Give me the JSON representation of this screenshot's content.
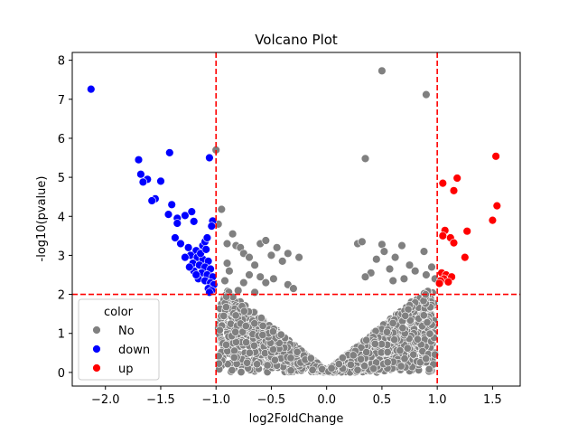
{
  "chart_data": {
    "type": "scatter",
    "title": "Volcano Plot",
    "xlabel": "log2FoldChange",
    "ylabel": "-log10(pvalue)",
    "xlim": [
      -2.3,
      1.75
    ],
    "ylim": [
      -0.35,
      8.2
    ],
    "xticks": [
      -2.0,
      -1.5,
      -1.0,
      -0.5,
      0.0,
      0.5,
      1.0,
      1.5
    ],
    "xtick_labels": [
      "−2.0",
      "−1.5",
      "−1.0",
      "−0.5",
      "0.0",
      "0.5",
      "1.0",
      "1.5"
    ],
    "yticks": [
      0,
      1,
      2,
      3,
      4,
      5,
      6,
      7,
      8
    ],
    "ytick_labels": [
      "0",
      "1",
      "2",
      "3",
      "4",
      "5",
      "6",
      "7",
      "8"
    ],
    "grid": false,
    "thresholds": {
      "x": [
        -1.0,
        1.0
      ],
      "y": 2.0,
      "color": "#ff0000"
    },
    "legend": {
      "title": "color",
      "position": "lower-left",
      "entries": [
        {
          "label": "No",
          "color": "#808080"
        },
        {
          "label": "down",
          "color": "#0000ff"
        },
        {
          "label": "up",
          "color": "#ff0000"
        }
      ]
    },
    "series": [
      {
        "name": "No",
        "color": "#808080",
        "points": [
          [
            0.5,
            7.73
          ],
          [
            0.9,
            7.12
          ],
          [
            -1.0,
            5.7
          ],
          [
            0.35,
            5.48
          ],
          [
            -0.95,
            4.18
          ],
          [
            -0.98,
            3.8
          ],
          [
            -0.85,
            3.55
          ],
          [
            -0.9,
            3.3
          ],
          [
            -0.82,
            3.25
          ],
          [
            -0.78,
            3.2
          ],
          [
            -0.75,
            3.05
          ],
          [
            -0.7,
            2.95
          ],
          [
            -0.6,
            3.3
          ],
          [
            -0.55,
            3.38
          ],
          [
            -0.5,
            3.0
          ],
          [
            -0.45,
            3.2
          ],
          [
            -0.35,
            3.05
          ],
          [
            -0.25,
            2.95
          ],
          [
            -0.65,
            2.75
          ],
          [
            -0.4,
            2.85
          ],
          [
            -0.9,
            2.8
          ],
          [
            0.28,
            3.3
          ],
          [
            0.32,
            3.35
          ],
          [
            0.5,
            3.28
          ],
          [
            0.52,
            3.1
          ],
          [
            0.68,
            3.25
          ],
          [
            0.88,
            3.1
          ],
          [
            0.62,
            2.95
          ],
          [
            0.45,
            2.9
          ],
          [
            0.75,
            2.75
          ],
          [
            0.95,
            2.7
          ],
          [
            0.8,
            2.6
          ],
          [
            0.57,
            2.65
          ],
          [
            0.4,
            2.55
          ],
          [
            0.35,
            2.45
          ],
          [
            0.9,
            2.5
          ],
          [
            0.98,
            2.4
          ],
          [
            0.7,
            2.4
          ],
          [
            0.6,
            2.35
          ],
          [
            -0.88,
            2.6
          ],
          [
            -0.7,
            2.5
          ],
          [
            -0.6,
            2.45
          ],
          [
            -0.55,
            2.3
          ],
          [
            -0.48,
            2.4
          ],
          [
            -0.35,
            2.25
          ],
          [
            -0.3,
            2.15
          ],
          [
            -0.75,
            2.3
          ],
          [
            -0.92,
            2.35
          ],
          [
            -0.8,
            2.1
          ],
          [
            -0.65,
            2.05
          ]
        ]
      },
      {
        "name": "down",
        "color": "#0000ff",
        "points": [
          [
            -2.13,
            7.26
          ],
          [
            -1.42,
            5.63
          ],
          [
            -1.06,
            5.5
          ],
          [
            -1.7,
            5.45
          ],
          [
            -1.68,
            5.08
          ],
          [
            -1.62,
            4.95
          ],
          [
            -1.66,
            4.88
          ],
          [
            -1.5,
            4.9
          ],
          [
            -1.55,
            4.45
          ],
          [
            -1.58,
            4.4
          ],
          [
            -1.4,
            4.3
          ],
          [
            -1.43,
            4.05
          ],
          [
            -1.35,
            3.95
          ],
          [
            -1.35,
            3.82
          ],
          [
            -1.28,
            4.02
          ],
          [
            -1.22,
            4.12
          ],
          [
            -1.2,
            3.87
          ],
          [
            -1.03,
            3.88
          ],
          [
            -1.04,
            3.75
          ],
          [
            -1.37,
            3.45
          ],
          [
            -1.32,
            3.3
          ],
          [
            -1.25,
            3.2
          ],
          [
            -1.18,
            3.12
          ],
          [
            -1.12,
            3.25
          ],
          [
            -1.1,
            3.35
          ],
          [
            -1.08,
            3.45
          ],
          [
            -1.23,
            3.0
          ],
          [
            -1.17,
            2.95
          ],
          [
            -1.12,
            2.9
          ],
          [
            -1.07,
            2.85
          ],
          [
            -1.21,
            2.8
          ],
          [
            -1.15,
            2.75
          ],
          [
            -1.1,
            2.7
          ],
          [
            -1.05,
            2.65
          ],
          [
            -1.2,
            2.6
          ],
          [
            -1.13,
            2.55
          ],
          [
            -1.08,
            2.5
          ],
          [
            -1.03,
            2.45
          ],
          [
            -1.16,
            2.4
          ],
          [
            -1.1,
            2.35
          ],
          [
            -1.05,
            2.3
          ],
          [
            -1.02,
            2.25
          ],
          [
            -1.07,
            2.15
          ],
          [
            -1.04,
            2.1
          ],
          [
            -1.28,
            2.95
          ],
          [
            -1.24,
            2.7
          ],
          [
            -1.18,
            2.5
          ],
          [
            -1.06,
            2.05
          ],
          [
            -1.14,
            3.05
          ],
          [
            -1.09,
            3.15
          ]
        ]
      },
      {
        "name": "up",
        "color": "#ff0000",
        "points": [
          [
            1.53,
            5.54
          ],
          [
            1.18,
            4.98
          ],
          [
            1.05,
            4.85
          ],
          [
            1.15,
            4.66
          ],
          [
            1.54,
            4.27
          ],
          [
            1.5,
            3.9
          ],
          [
            1.07,
            3.64
          ],
          [
            1.27,
            3.62
          ],
          [
            1.05,
            3.5
          ],
          [
            1.12,
            3.45
          ],
          [
            1.15,
            3.32
          ],
          [
            1.25,
            2.95
          ],
          [
            1.04,
            2.55
          ],
          [
            1.08,
            2.5
          ],
          [
            1.06,
            2.4
          ],
          [
            1.13,
            2.45
          ],
          [
            1.03,
            2.35
          ],
          [
            1.1,
            2.32
          ],
          [
            1.02,
            2.28
          ]
        ]
      }
    ]
  }
}
